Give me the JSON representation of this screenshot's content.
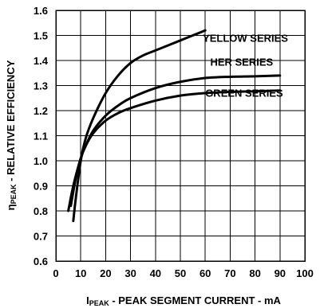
{
  "chart_data": {
    "type": "line",
    "xlabel_prefix": "I",
    "xlabel_sub": "PEAK",
    "xlabel_rest": " - PEAK SEGMENT CURRENT - mA",
    "ylabel_prefix": "η",
    "ylabel_sub": "PEAK",
    "ylabel_rest": " - RELATIVE EFFICIENCY",
    "xlim": [
      0,
      100
    ],
    "ylim": [
      0.6,
      1.6
    ],
    "xticks": [
      0,
      10,
      20,
      30,
      40,
      50,
      60,
      70,
      80,
      90,
      100
    ],
    "yticks": [
      0.6,
      0.7,
      0.8,
      0.9,
      1.0,
      1.1,
      1.2,
      1.3,
      1.4,
      1.5,
      1.6
    ],
    "xtick_labels": [
      "0",
      "10",
      "20",
      "30",
      "40",
      "50",
      "60",
      "70",
      "80",
      "90",
      "100"
    ],
    "ytick_labels": [
      "0.6",
      "0.7",
      "0.8",
      "0.9",
      "1.0",
      "1.1",
      "1.2",
      "1.3",
      "1.4",
      "1.5",
      "1.6"
    ],
    "grid": true,
    "series": [
      {
        "name": "YELLOW SERIES",
        "x": [
          7,
          8,
          10,
          12,
          15,
          20,
          25,
          30,
          35,
          40,
          50,
          60
        ],
        "y": [
          0.76,
          0.85,
          1.0,
          1.09,
          1.17,
          1.27,
          1.34,
          1.39,
          1.42,
          1.44,
          1.48,
          1.52
        ]
      },
      {
        "name": "HER SERIES",
        "x": [
          5,
          7,
          10,
          12,
          15,
          20,
          25,
          30,
          40,
          50,
          60,
          70,
          80,
          90
        ],
        "y": [
          0.8,
          0.9,
          1.01,
          1.06,
          1.12,
          1.18,
          1.22,
          1.25,
          1.29,
          1.315,
          1.33,
          1.335,
          1.337,
          1.34
        ]
      },
      {
        "name": "GREEN SERIES",
        "x": [
          6,
          8,
          10,
          12,
          15,
          20,
          25,
          30,
          40,
          50,
          60,
          70,
          80,
          90
        ],
        "y": [
          0.82,
          0.93,
          1.01,
          1.06,
          1.11,
          1.16,
          1.19,
          1.21,
          1.24,
          1.26,
          1.27,
          1.275,
          1.277,
          1.28
        ]
      }
    ]
  }
}
